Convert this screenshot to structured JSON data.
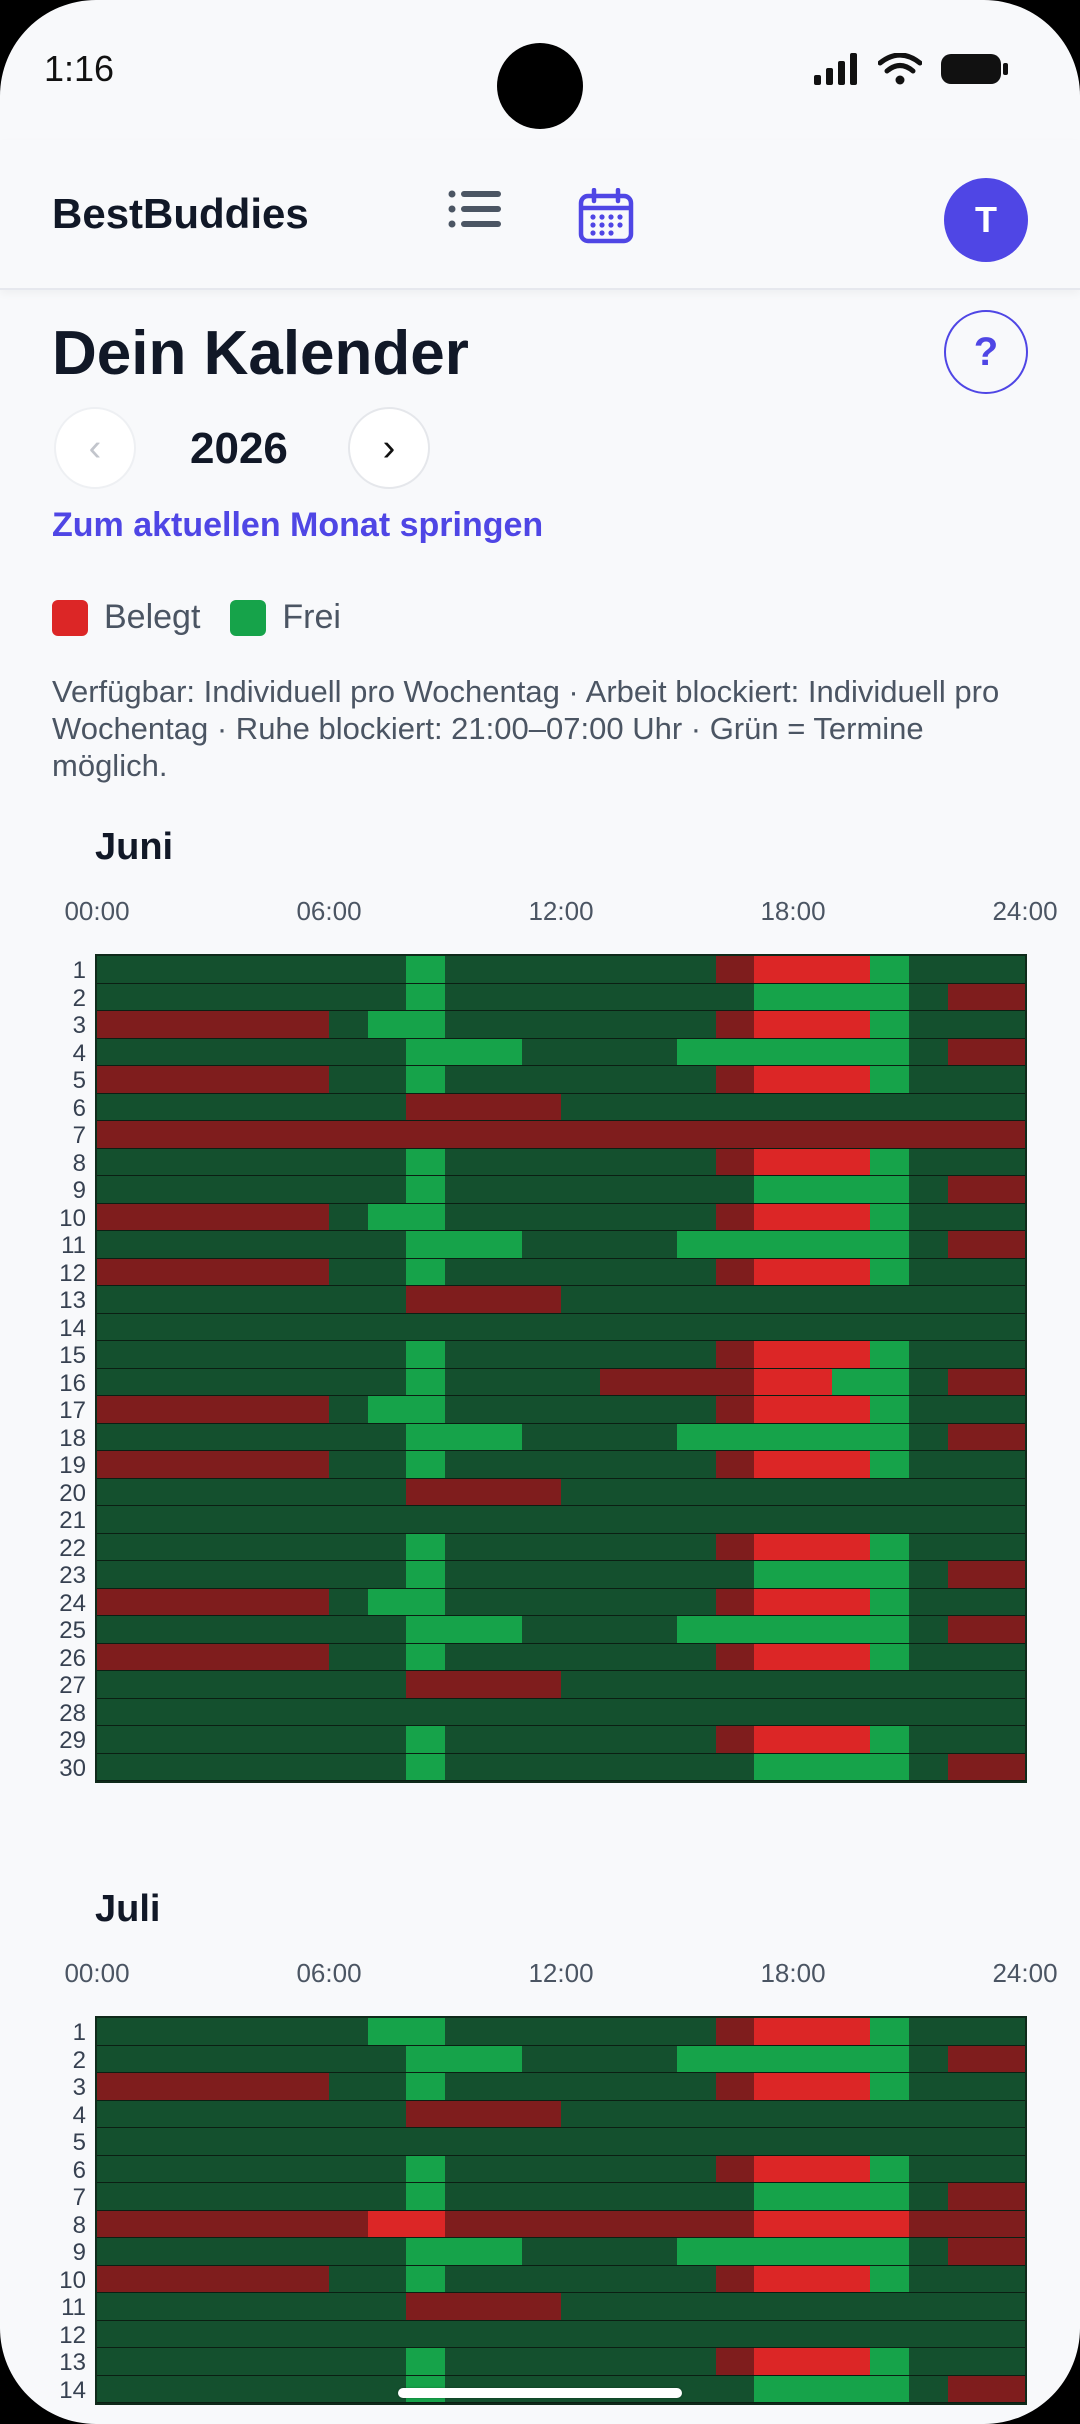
{
  "status": {
    "time": "1:16"
  },
  "app": {
    "brand": "BestBuddies",
    "avatar_initial": "T"
  },
  "page": {
    "title": "Dein Kalender",
    "help": "?",
    "year": "2026",
    "prev_label": "‹",
    "next_label": "›",
    "jump_label": "Zum aktuellen Monat springen",
    "legend": {
      "busy": "Belegt",
      "free": "Frei"
    },
    "info": "Verfügbar: Individuell pro Wochentag · Arbeit blockiert: Individuell pro Wochentag · Ruhe blockiert: 21:00–07:00 Uhr · Grün = Termine möglich."
  },
  "hour_labels": [
    "00:00",
    "06:00",
    "12:00",
    "18:00",
    "24:00"
  ],
  "colors": {
    "dark_green": "#14502e",
    "green": "#16a34a",
    "dark_red": "#7f1d1d",
    "red": "#dc2626",
    "accent": "#4f46e5"
  },
  "months": [
    {
      "name": "Juni",
      "days": [
        {
          "day": "1",
          "pattern": "A"
        },
        {
          "day": "2",
          "pattern": "B"
        },
        {
          "day": "3",
          "pattern": "C"
        },
        {
          "day": "4",
          "pattern": "D"
        },
        {
          "day": "5",
          "pattern": "E"
        },
        {
          "day": "6",
          "pattern": "F"
        },
        {
          "day": "7",
          "pattern": "G"
        },
        {
          "day": "8",
          "pattern": "A"
        },
        {
          "day": "9",
          "pattern": "B"
        },
        {
          "day": "10",
          "pattern": "C"
        },
        {
          "day": "11",
          "pattern": "D"
        },
        {
          "day": "12",
          "pattern": "E"
        },
        {
          "day": "13",
          "pattern": "F"
        },
        {
          "day": "14",
          "pattern": "H"
        },
        {
          "day": "15",
          "pattern": "A"
        },
        {
          "day": "16",
          "pattern": "I"
        },
        {
          "day": "17",
          "pattern": "C"
        },
        {
          "day": "18",
          "pattern": "D"
        },
        {
          "day": "19",
          "pattern": "E"
        },
        {
          "day": "20",
          "pattern": "F"
        },
        {
          "day": "21",
          "pattern": "H"
        },
        {
          "day": "22",
          "pattern": "A"
        },
        {
          "day": "23",
          "pattern": "B"
        },
        {
          "day": "24",
          "pattern": "C"
        },
        {
          "day": "25",
          "pattern": "D"
        },
        {
          "day": "26",
          "pattern": "E"
        },
        {
          "day": "27",
          "pattern": "F"
        },
        {
          "day": "28",
          "pattern": "H"
        },
        {
          "day": "29",
          "pattern": "A"
        },
        {
          "day": "30",
          "pattern": "B"
        }
      ]
    },
    {
      "name": "Juli",
      "days": [
        {
          "day": "1",
          "pattern": "J"
        },
        {
          "day": "2",
          "pattern": "D"
        },
        {
          "day": "3",
          "pattern": "E"
        },
        {
          "day": "4",
          "pattern": "F"
        },
        {
          "day": "5",
          "pattern": "H"
        },
        {
          "day": "6",
          "pattern": "A"
        },
        {
          "day": "7",
          "pattern": "B"
        },
        {
          "day": "8",
          "pattern": "K"
        },
        {
          "day": "9",
          "pattern": "D"
        },
        {
          "day": "10",
          "pattern": "E"
        },
        {
          "day": "11",
          "pattern": "F"
        },
        {
          "day": "12",
          "pattern": "H"
        },
        {
          "day": "13",
          "pattern": "A"
        },
        {
          "day": "14",
          "pattern": "B"
        }
      ]
    }
  ],
  "patterns": {
    "A": [
      [
        0,
        8,
        "dg"
      ],
      [
        8,
        9,
        "g"
      ],
      [
        9,
        16,
        "dg"
      ],
      [
        16,
        17,
        "dr"
      ],
      [
        17,
        20,
        "r"
      ],
      [
        20,
        21,
        "g"
      ],
      [
        21,
        24,
        "dg"
      ]
    ],
    "B": [
      [
        0,
        8,
        "dg"
      ],
      [
        8,
        9,
        "g"
      ],
      [
        9,
        17,
        "dg"
      ],
      [
        17,
        21,
        "g"
      ],
      [
        21,
        22,
        "dg"
      ],
      [
        22,
        24,
        "dr"
      ]
    ],
    "C": [
      [
        0,
        6,
        "dr"
      ],
      [
        6,
        7,
        "dg"
      ],
      [
        7,
        9,
        "g"
      ],
      [
        9,
        16,
        "dg"
      ],
      [
        16,
        17,
        "dr"
      ],
      [
        17,
        20,
        "r"
      ],
      [
        20,
        21,
        "g"
      ],
      [
        21,
        24,
        "dg"
      ]
    ],
    "D": [
      [
        0,
        8,
        "dg"
      ],
      [
        8,
        11,
        "g"
      ],
      [
        11,
        15,
        "dg"
      ],
      [
        15,
        21,
        "g"
      ],
      [
        21,
        22,
        "dg"
      ],
      [
        22,
        24,
        "dr"
      ]
    ],
    "E": [
      [
        0,
        6,
        "dr"
      ],
      [
        6,
        8,
        "dg"
      ],
      [
        8,
        9,
        "g"
      ],
      [
        9,
        16,
        "dg"
      ],
      [
        16,
        17,
        "dr"
      ],
      [
        17,
        20,
        "r"
      ],
      [
        20,
        21,
        "g"
      ],
      [
        21,
        24,
        "dg"
      ]
    ],
    "F": [
      [
        0,
        8,
        "dg"
      ],
      [
        8,
        12,
        "dr"
      ],
      [
        12,
        24,
        "dg"
      ]
    ],
    "G": [
      [
        0,
        24,
        "dr"
      ]
    ],
    "H": [
      [
        0,
        24,
        "dg"
      ]
    ],
    "I": [
      [
        0,
        8,
        "dg"
      ],
      [
        8,
        9,
        "g"
      ],
      [
        9,
        13,
        "dg"
      ],
      [
        13,
        17,
        "dr"
      ],
      [
        17,
        19,
        "r"
      ],
      [
        19,
        21,
        "g"
      ],
      [
        21,
        22,
        "dg"
      ],
      [
        22,
        24,
        "dr"
      ]
    ],
    "J": [
      [
        0,
        7,
        "dg"
      ],
      [
        7,
        9,
        "g"
      ],
      [
        9,
        16,
        "dg"
      ],
      [
        16,
        17,
        "dr"
      ],
      [
        17,
        20,
        "r"
      ],
      [
        20,
        21,
        "g"
      ],
      [
        21,
        24,
        "dg"
      ]
    ],
    "K": [
      [
        0,
        7,
        "dr"
      ],
      [
        7,
        9,
        "r"
      ],
      [
        9,
        17,
        "dr"
      ],
      [
        17,
        21,
        "r"
      ],
      [
        21,
        24,
        "dr"
      ]
    ]
  }
}
